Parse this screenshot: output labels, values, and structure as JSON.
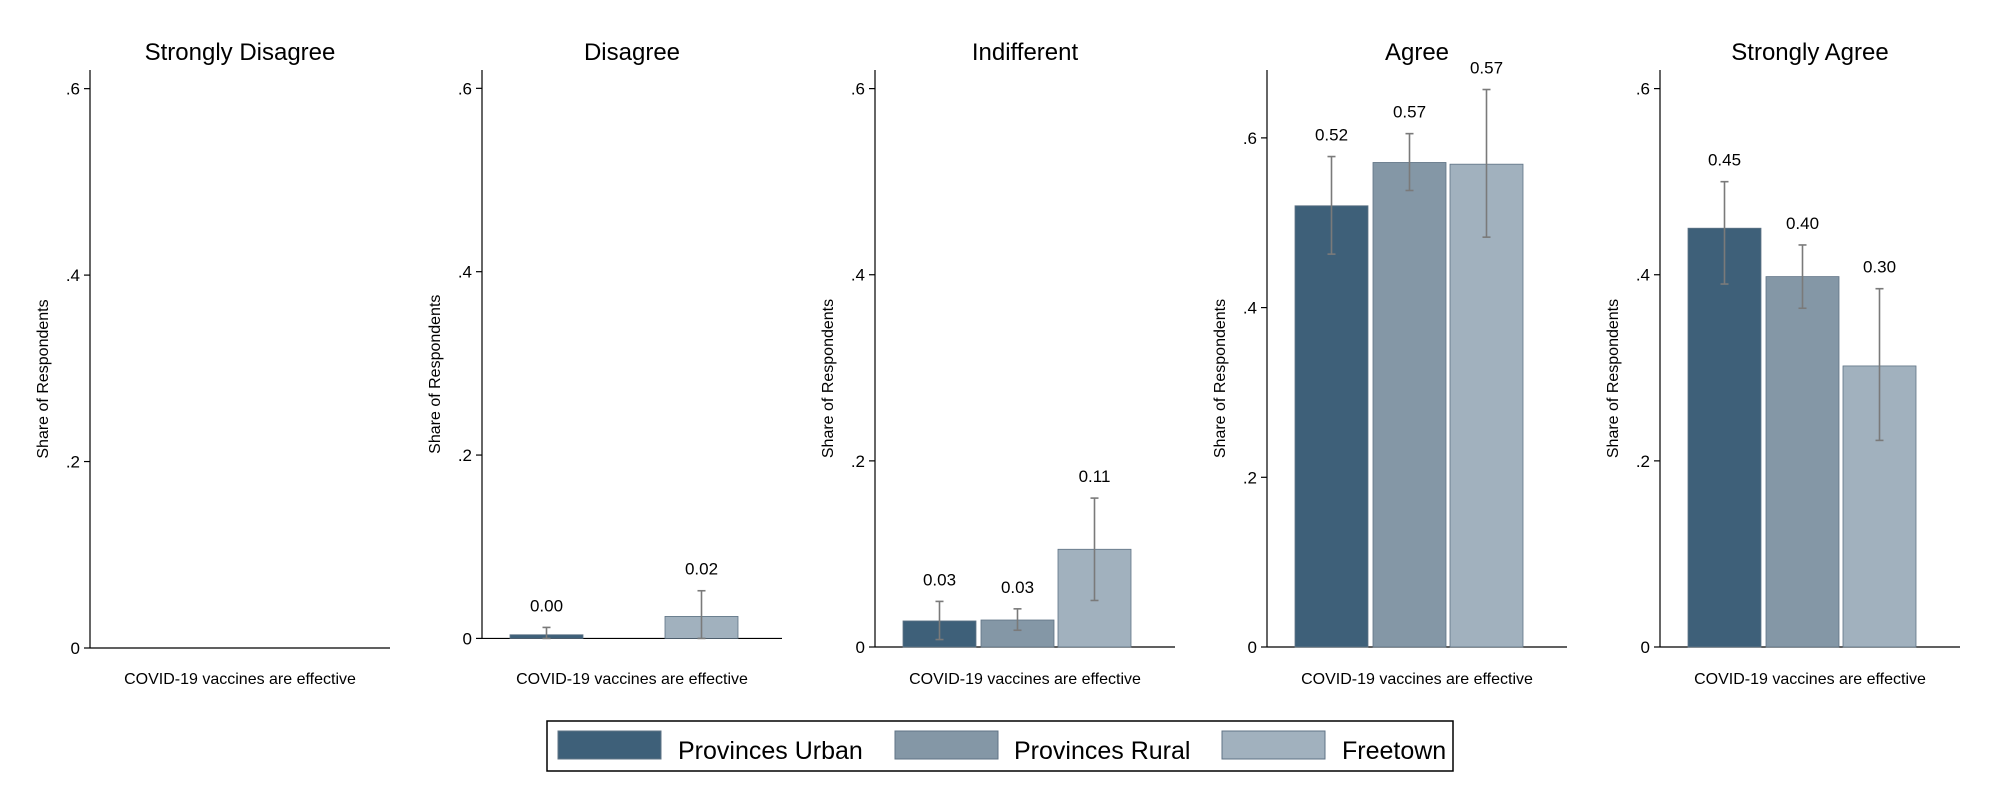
{
  "chart_data": {
    "type": "bar",
    "ylabel": "Share of Respondents",
    "xlabel": "COVID-19 vaccines are effective",
    "colors": {
      "Provinces Urban": "#3e6079",
      "Provinces Rural": "#8497a6",
      "Freetown": "#a1b1be",
      "error_bar": "#7a7a7a"
    },
    "legend": {
      "position": "bottom",
      "entries": [
        "Provinces Urban",
        "Provinces Rural",
        "Freetown"
      ]
    },
    "panels": [
      {
        "title": "Strongly Disagree",
        "ylim": [
          0,
          0.62
        ],
        "yticks": [
          0,
          0.2,
          0.4,
          0.6
        ],
        "ytick_labels": [
          "0",
          ".2",
          ".4",
          ".6"
        ],
        "bars": []
      },
      {
        "title": "Disagree",
        "ylim": [
          -0.005,
          0.62
        ],
        "yticks": [
          0,
          0.2,
          0.4,
          0.6
        ],
        "ytick_labels": [
          "0",
          ".2",
          ".4",
          ".6"
        ],
        "bars": [
          {
            "series": "Provinces Urban",
            "value": 0.004,
            "ci": [
              0.0,
              0.012
            ],
            "label": "0.00"
          },
          {
            "series": "Freetown",
            "value": 0.024,
            "ci": [
              0.0,
              0.052
            ],
            "label": "0.02"
          }
        ]
      },
      {
        "title": "Indifferent",
        "ylim": [
          0,
          0.62
        ],
        "yticks": [
          0,
          0.2,
          0.4,
          0.6
        ],
        "ytick_labels": [
          "0",
          ".2",
          ".4",
          ".6"
        ],
        "bars": [
          {
            "series": "Provinces Urban",
            "value": 0.028,
            "ci": [
              0.008,
              0.049
            ],
            "label": "0.03"
          },
          {
            "series": "Provinces Rural",
            "value": 0.029,
            "ci": [
              0.018,
              0.041
            ],
            "label": "0.03"
          },
          {
            "series": "Freetown",
            "value": 0.105,
            "ci": [
              0.05,
              0.16
            ],
            "label": "0.11"
          }
        ]
      },
      {
        "title": "Agree",
        "ylim": [
          0,
          0.68
        ],
        "yticks": [
          0,
          0.2,
          0.4,
          0.6
        ],
        "ytick_labels": [
          "0",
          ".2",
          ".4",
          ".6"
        ],
        "bars": [
          {
            "series": "Provinces Urban",
            "value": 0.52,
            "ci": [
              0.463,
              0.578
            ],
            "label": "0.52"
          },
          {
            "series": "Provinces Rural",
            "value": 0.571,
            "ci": [
              0.538,
              0.605
            ],
            "label": "0.57"
          },
          {
            "series": "Freetown",
            "value": 0.569,
            "ci": [
              0.483,
              0.657
            ],
            "label": "0.57"
          }
        ]
      },
      {
        "title": "Strongly Agree",
        "ylim": [
          0,
          0.62
        ],
        "yticks": [
          0,
          0.2,
          0.4,
          0.6
        ],
        "ytick_labels": [
          "0",
          ".2",
          ".4",
          ".6"
        ],
        "bars": [
          {
            "series": "Provinces Urban",
            "value": 0.45,
            "ci": [
              0.39,
              0.5
            ],
            "label": "0.45"
          },
          {
            "series": "Provinces Rural",
            "value": 0.398,
            "ci": [
              0.364,
              0.432
            ],
            "label": "0.40"
          },
          {
            "series": "Freetown",
            "value": 0.302,
            "ci": [
              0.222,
              0.385
            ],
            "label": "0.30"
          }
        ]
      }
    ]
  }
}
